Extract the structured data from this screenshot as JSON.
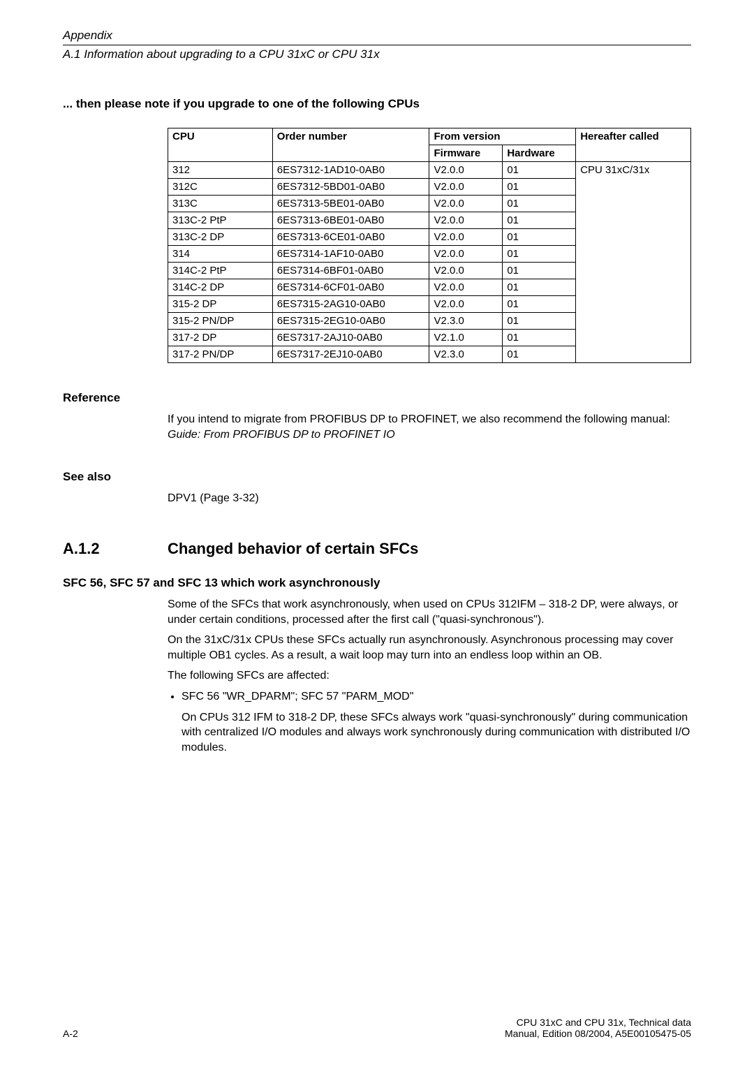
{
  "header": {
    "appendix": "Appendix",
    "subtitle": "A.1 Information about upgrading to a CPU 31xC or CPU 31x"
  },
  "upgradeNote": {
    "heading": "... then please note if you upgrade to one of the following CPUs",
    "columns": {
      "cpu": "CPU",
      "orderNumber": "Order number",
      "fromVersion": "From version",
      "firmware": "Firmware",
      "hardware": "Hardware",
      "hereafter": "Hereafter called"
    },
    "rows": [
      {
        "cpu": "312",
        "order": "6ES7312-1AD10-0AB0",
        "fw": "V2.0.0",
        "hw": "01"
      },
      {
        "cpu": "312C",
        "order": "6ES7312-5BD01-0AB0",
        "fw": "V2.0.0",
        "hw": "01"
      },
      {
        "cpu": "313C",
        "order": "6ES7313-5BE01-0AB0",
        "fw": "V2.0.0",
        "hw": "01"
      },
      {
        "cpu": "313C-2 PtP",
        "order": "6ES7313-6BE01-0AB0",
        "fw": "V2.0.0",
        "hw": "01"
      },
      {
        "cpu": "313C-2 DP",
        "order": "6ES7313-6CE01-0AB0",
        "fw": "V2.0.0",
        "hw": "01"
      },
      {
        "cpu": "314",
        "order": "6ES7314-1AF10-0AB0",
        "fw": "V2.0.0",
        "hw": "01"
      },
      {
        "cpu": "314C-2 PtP",
        "order": "6ES7314-6BF01-0AB0",
        "fw": "V2.0.0",
        "hw": "01"
      },
      {
        "cpu": "314C-2 DP",
        "order": "6ES7314-6CF01-0AB0",
        "fw": "V2.0.0",
        "hw": "01"
      },
      {
        "cpu": "315-2 DP",
        "order": "6ES7315-2AG10-0AB0",
        "fw": "V2.0.0",
        "hw": "01"
      },
      {
        "cpu": "315-2 PN/DP",
        "order": "6ES7315-2EG10-0AB0",
        "fw": "V2.3.0",
        "hw": "01"
      },
      {
        "cpu": " 317-2 DP",
        "order": "6ES7317-2AJ10-0AB0",
        "fw": "V2.1.0",
        "hw": "01"
      },
      {
        "cpu": "317-2 PN/DP",
        "order": "6ES7317-2EJ10-0AB0",
        "fw": "V2.3.0",
        "hw": "01"
      }
    ],
    "hereafterValue": "CPU 31xC/31x"
  },
  "reference": {
    "heading": "Reference",
    "text_prefix": "If you intend to migrate from PROFIBUS DP to PROFINET, we also recommend the following manual: ",
    "text_italic": "Guide: From PROFIBUS DP to PROFINET IO"
  },
  "seeAlso": {
    "heading": "See also",
    "text": "DPV1 (Page 3-32)"
  },
  "section": {
    "number": "A.1.2",
    "title": "Changed behavior of certain SFCs"
  },
  "sfc": {
    "heading": "SFC 56, SFC 57 and SFC 13 which work asynchronously",
    "para1": "Some of the SFCs that work asynchronously, when used on CPUs 312IFM – 318-2 DP, were always, or under certain conditions, processed after the first call (\"quasi-synchronous\").",
    "para2": "On the 31xC/31x CPUs these SFCs actually run asynchronously. Asynchronous processing may cover multiple OB1 cycles. As a result, a wait loop may turn into an endless loop within an OB.",
    "para3": "The following SFCs are affected:",
    "bullet": "SFC 56 \"WR_DPARM\"; SFC 57 \"PARM_MOD\"",
    "bulletDetail": "On CPUs 312 IFM to 318-2 DP, these SFCs always work \"quasi-synchronously\" during communication with centralized I/O modules and always work synchronously during communication with distributed I/O modules."
  },
  "footer": {
    "pageNo": "A-2",
    "right1": "CPU 31xC and CPU 31x, Technical data",
    "right2": "Manual, Edition 08/2004, A5E00105475-05"
  }
}
